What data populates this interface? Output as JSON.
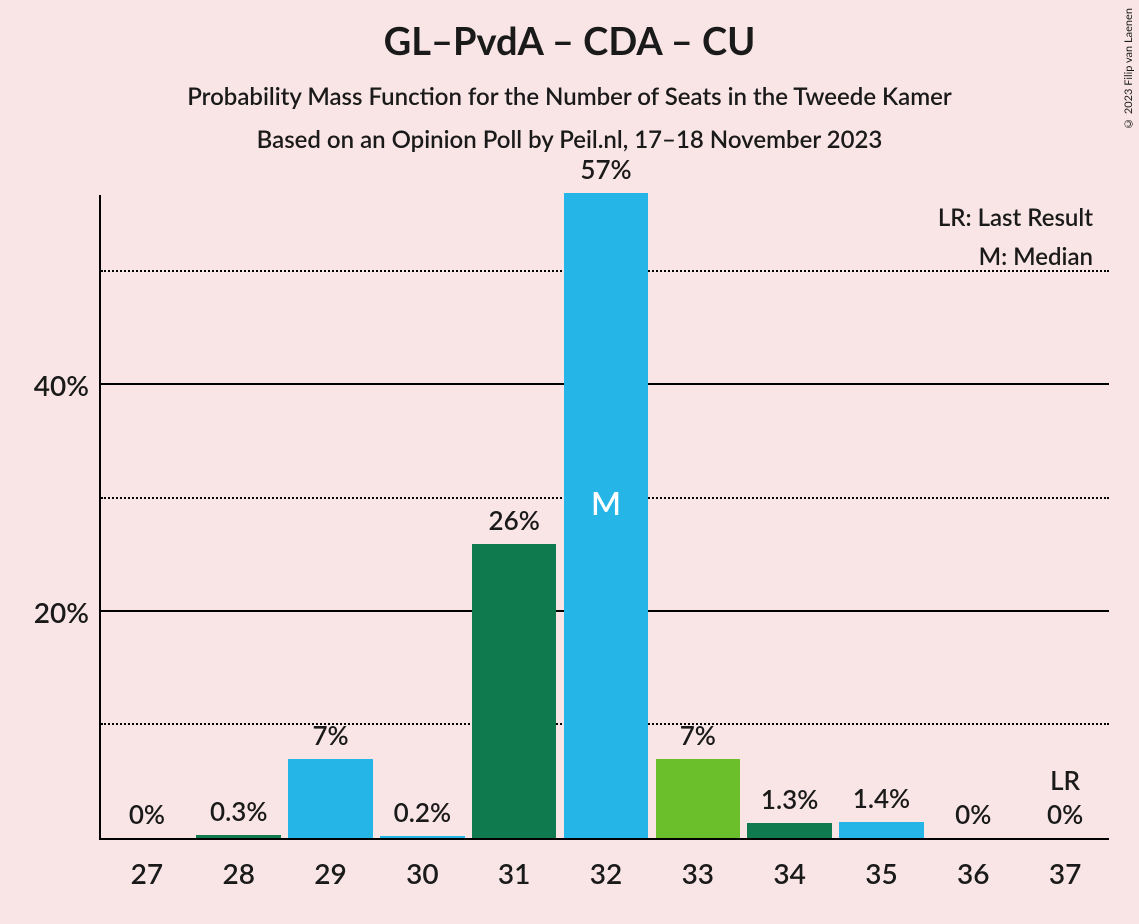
{
  "title": "GL–PvdA – CDA – CU",
  "subtitle": "Probability Mass Function for the Number of Seats in the Tweede Kamer",
  "subtitle2": "Based on an Opinion Poll by Peil.nl, 17–18 November 2023",
  "copyright": "© 2023 Filip van Laenen",
  "legend": {
    "lr": "LR: Last Result",
    "m": "M: Median"
  },
  "chart": {
    "type": "bar",
    "background_color": "#f9e5e5",
    "axis_color": "#000000",
    "text_color": "#1a1a1a",
    "ylim": [
      0,
      57
    ],
    "y_ticks": [
      {
        "value": 10,
        "label": "",
        "type": "minor"
      },
      {
        "value": 20,
        "label": "20%",
        "type": "major"
      },
      {
        "value": 30,
        "label": "",
        "type": "minor"
      },
      {
        "value": 40,
        "label": "40%",
        "type": "major"
      },
      {
        "value": 50,
        "label": "",
        "type": "minor"
      }
    ],
    "categories": [
      "27",
      "28",
      "29",
      "30",
      "31",
      "32",
      "33",
      "34",
      "35",
      "36",
      "37"
    ],
    "bars": [
      {
        "value": 0,
        "label": "0%",
        "color": "#26b5e7"
      },
      {
        "value": 0.3,
        "label": "0.3%",
        "color": "#0e7a4d"
      },
      {
        "value": 7,
        "label": "7%",
        "color": "#26b5e7"
      },
      {
        "value": 0.2,
        "label": "0.2%",
        "color": "#26b5e7"
      },
      {
        "value": 26,
        "label": "26%",
        "color": "#0e7a4d"
      },
      {
        "value": 57,
        "label": "57%",
        "color": "#26b5e7",
        "median": true
      },
      {
        "value": 7,
        "label": "7%",
        "color": "#6bbf2a"
      },
      {
        "value": 1.3,
        "label": "1.3%",
        "color": "#0e7a4d"
      },
      {
        "value": 1.4,
        "label": "1.4%",
        "color": "#26b5e7"
      },
      {
        "value": 0,
        "label": "0%",
        "color": "#26b5e7"
      },
      {
        "value": 0,
        "label": "0%",
        "color": "#26b5e7",
        "lr": true
      }
    ],
    "median_text": "M",
    "lr_text": "LR",
    "bar_width_ratio": 0.92,
    "title_fontsize": 38,
    "subtitle_fontsize": 24,
    "axis_fontsize": 28,
    "barlabel_fontsize": 26,
    "legend_fontsize": 24
  }
}
